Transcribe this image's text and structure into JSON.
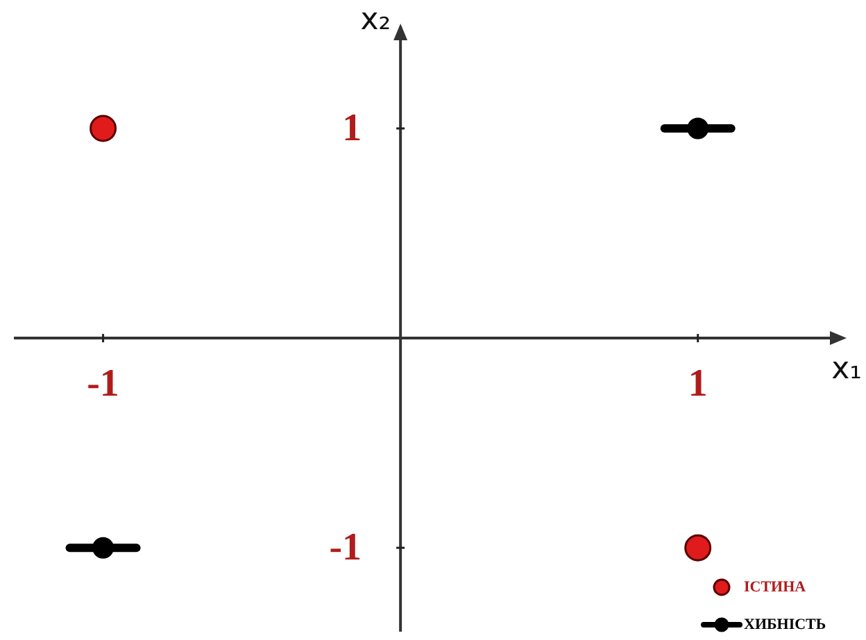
{
  "chart_data": {
    "type": "scatter",
    "xlabel": "x₁",
    "ylabel": "x₂",
    "xlim": [
      -1.3,
      1.5
    ],
    "ylim": [
      -1.4,
      1.5
    ],
    "xticks": [
      -1,
      1
    ],
    "yticks": [
      -1,
      1
    ],
    "legend": "bottom right",
    "x": [
      -1,
      1
    ],
    "series": [
      {
        "name": "ІСТИНА",
        "color": "#e01b1b",
        "marker": "circle",
        "values": [
          1,
          -1
        ]
      },
      {
        "name": "ХИБНІСТЬ",
        "color": "#000000",
        "marker": "circle",
        "line_style": "solid",
        "values": [
          -1,
          1
        ]
      }
    ]
  }
}
